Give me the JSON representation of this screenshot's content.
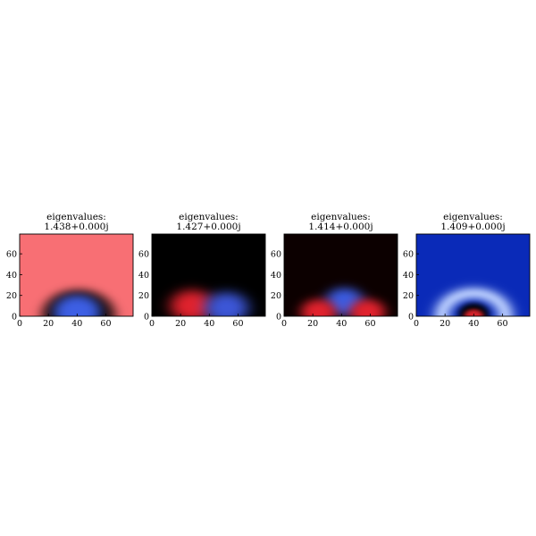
{
  "chart_data": [
    {
      "type": "heatmap",
      "title_lines": [
        "eigenvalues:",
        "1.438+0.000j"
      ],
      "xlim": [
        0,
        79
      ],
      "ylim": [
        0,
        79
      ],
      "xticks": [
        0,
        20,
        40,
        60
      ],
      "yticks": [
        0,
        20,
        40,
        60
      ],
      "field": {
        "background": "#f86f74",
        "blobs": [
          {
            "cx": 41,
            "cy": 0,
            "r": 26,
            "color": "#000000",
            "strength": 1.0,
            "sharp": 3.0
          },
          {
            "cx": 40,
            "cy": 4,
            "r": 17,
            "color": "#3d5fe4",
            "strength": 1.0,
            "sharp": 2.2
          }
        ]
      }
    },
    {
      "type": "heatmap",
      "title_lines": [
        "eigenvalues:",
        "1.427+0.000j"
      ],
      "xlim": [
        0,
        79
      ],
      "ylim": [
        0,
        79
      ],
      "xticks": [
        0,
        20,
        40,
        60
      ],
      "yticks": [
        0,
        20,
        40,
        60
      ],
      "field": {
        "background": "#000000",
        "blobs": [
          {
            "cx": 28,
            "cy": 10,
            "r": 16,
            "color": "#e0222d",
            "strength": 1.0,
            "sharp": 1.6
          },
          {
            "cx": 52,
            "cy": 8,
            "r": 16,
            "color": "#3c56d6",
            "strength": 1.0,
            "sharp": 1.6
          }
        ]
      }
    },
    {
      "type": "heatmap",
      "title_lines": [
        "eigenvalues:",
        "1.414+0.000j"
      ],
      "xlim": [
        0,
        79
      ],
      "ylim": [
        0,
        79
      ],
      "xticks": [
        0,
        20,
        40,
        60
      ],
      "yticks": [
        0,
        20,
        40,
        60
      ],
      "field": {
        "background": "#0c0000",
        "blobs": [
          {
            "cx": 42,
            "cy": 14,
            "r": 14,
            "color": "#3a5be0",
            "strength": 1.0,
            "sharp": 1.6
          },
          {
            "cx": 24,
            "cy": 4,
            "r": 13,
            "color": "#e0222d",
            "strength": 1.0,
            "sharp": 1.6
          },
          {
            "cx": 58,
            "cy": 4,
            "r": 13,
            "color": "#e0222d",
            "strength": 1.0,
            "sharp": 1.6
          }
        ]
      }
    },
    {
      "type": "heatmap",
      "title_lines": [
        "eigenvalues:",
        "1.409+0.000j"
      ],
      "xlim": [
        0,
        79
      ],
      "ylim": [
        0,
        79
      ],
      "xticks": [
        0,
        20,
        40,
        60
      ],
      "yticks": [
        0,
        20,
        40,
        60
      ],
      "field": {
        "background": "#0a2ab8",
        "blobs": [
          {
            "cx": 40,
            "cy": 0,
            "r": 26,
            "color": "#aabff8",
            "strength": 1.0,
            "sharp": 3.0,
            "ring": 22,
            "ringWidth": 7
          },
          {
            "cx": 40,
            "cy": 2,
            "r": 11,
            "color": "#000000",
            "strength": 1.0,
            "sharp": 2.5
          },
          {
            "cx": 40,
            "cy": 0,
            "r": 7,
            "color": "#d8242c",
            "strength": 1.0,
            "sharp": 2.0
          }
        ]
      }
    }
  ]
}
